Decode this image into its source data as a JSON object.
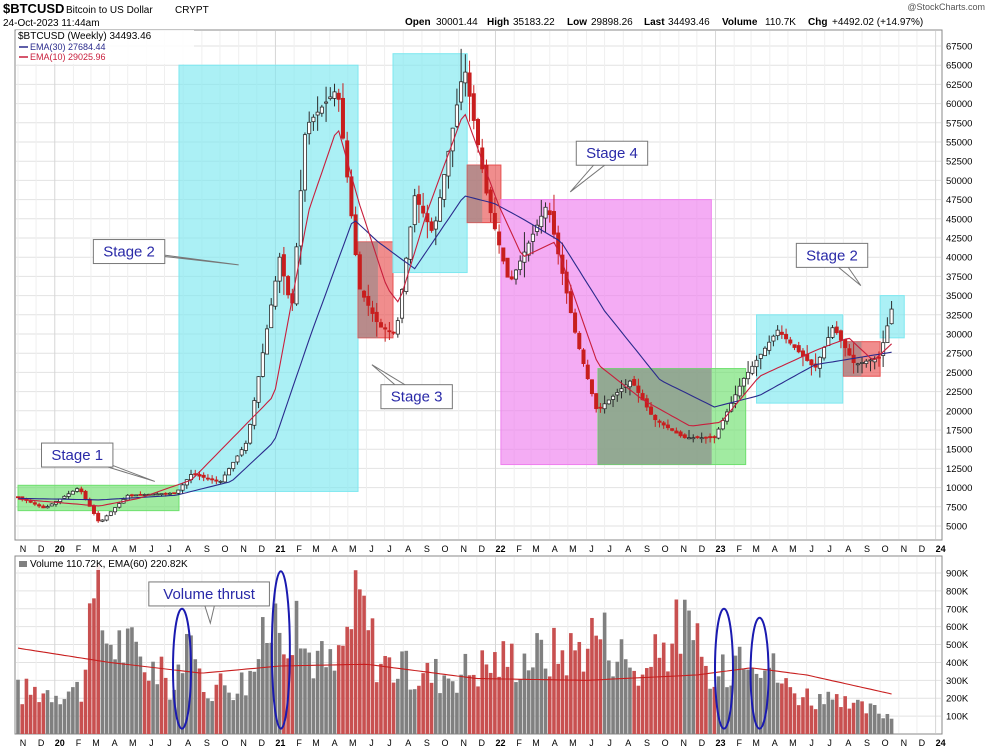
{
  "header": {
    "symbol": "$BTCUSD",
    "name": "Bitcoin to US Dollar",
    "exchange": "CRYPT",
    "date": "24-Oct-2023 11:44am",
    "watermark": "@StockCharts.com",
    "open_label": "Open",
    "open": "30001.44",
    "high_label": "High",
    "high": "35183.22",
    "low_label": "Low",
    "low": "29898.26",
    "last_label": "Last",
    "last": "34493.46",
    "volume_label": "Volume",
    "volume": "110.7K",
    "chg_label": "Chg",
    "chg": "+4492.02 (+14.97%)"
  },
  "legend": {
    "price": "$BTCUSD (Weekly) 34493.46",
    "ema30": "EMA(30) 27684.44",
    "ema10": "EMA(10) 29025.96",
    "volume": "Volume 110.72K, EMA(60) 220.82K"
  },
  "colors": {
    "up": "#2b2b2b",
    "down": "#c81e1e",
    "ema30": "#2a2a8c",
    "ema10": "#c81e3c",
    "ema_vol": "#c81e1e",
    "vol_up": "#808080",
    "vol_down": "#c85050",
    "stage1": "#6fe06f",
    "stage2": "#7ee8f0",
    "stage3": "#e85050",
    "stage4": "#ee80ee",
    "ellipse": "#1a1ab0"
  },
  "chart_data": {
    "type": "candlestick",
    "interval": "weekly",
    "ylim": [
      4500,
      69000
    ],
    "y_ticks": [
      5000,
      7500,
      10000,
      12500,
      15000,
      17500,
      20000,
      22500,
      25000,
      27500,
      30000,
      32500,
      35000,
      37500,
      40000,
      42500,
      45000,
      47500,
      50000,
      52500,
      55000,
      57500,
      60000,
      62500,
      65000,
      67500
    ],
    "x_axis_labels": [
      "N",
      "D",
      "20",
      "F",
      "M",
      "A",
      "M",
      "J",
      "J",
      "A",
      "S",
      "O",
      "N",
      "D",
      "21",
      "F",
      "M",
      "A",
      "M",
      "J",
      "J",
      "A",
      "S",
      "O",
      "N",
      "D",
      "22",
      "F",
      "M",
      "A",
      "M",
      "J",
      "J",
      "A",
      "S",
      "O",
      "N",
      "D",
      "23",
      "F",
      "M",
      "A",
      "M",
      "J",
      "J",
      "A",
      "S",
      "O",
      "N",
      "D",
      "24"
    ],
    "price_path": [
      [
        "2019-11-01",
        8800
      ],
      [
        "2019-12-15",
        7300
      ],
      [
        "2020-02-10",
        10000
      ],
      [
        "2020-03-15",
        5400
      ],
      [
        "2020-05-01",
        9000
      ],
      [
        "2020-07-20",
        9300
      ],
      [
        "2020-08-15",
        11800
      ],
      [
        "2020-10-01",
        10700
      ],
      [
        "2020-11-15",
        16000
      ],
      [
        "2021-01-08",
        40000
      ],
      [
        "2021-01-28",
        33000
      ],
      [
        "2021-02-20",
        57000
      ],
      [
        "2021-04-14",
        62000
      ],
      [
        "2021-05-20",
        36000
      ],
      [
        "2021-06-22",
        31000
      ],
      [
        "2021-07-20",
        30000
      ],
      [
        "2021-08-20",
        48000
      ],
      [
        "2021-09-20",
        43000
      ],
      [
        "2021-11-10",
        65000
      ],
      [
        "2021-12-20",
        47000
      ],
      [
        "2022-01-24",
        36500
      ],
      [
        "2022-03-28",
        47000
      ],
      [
        "2022-05-15",
        29500
      ],
      [
        "2022-06-18",
        20000
      ],
      [
        "2022-08-14",
        24000
      ],
      [
        "2022-09-20",
        19000
      ],
      [
        "2022-11-09",
        16500
      ],
      [
        "2022-12-30",
        16500
      ],
      [
        "2023-02-15",
        24000
      ],
      [
        "2023-04-14",
        30500
      ],
      [
        "2023-06-15",
        25500
      ],
      [
        "2023-07-15",
        31000
      ],
      [
        "2023-08-20",
        26000
      ],
      [
        "2023-09-30",
        27000
      ],
      [
        "2023-10-24",
        34493
      ]
    ],
    "ema30_path": [
      [
        "2019-11-01",
        8600
      ],
      [
        "2020-03-15",
        8400
      ],
      [
        "2020-07-20",
        9000
      ],
      [
        "2020-10-20",
        10800
      ],
      [
        "2020-12-30",
        16000
      ],
      [
        "2021-03-01",
        30000
      ],
      [
        "2021-05-10",
        45000
      ],
      [
        "2021-06-20",
        42000
      ],
      [
        "2021-08-20",
        38500
      ],
      [
        "2021-11-10",
        48000
      ],
      [
        "2021-12-30",
        47000
      ],
      [
        "2022-02-15",
        45000
      ],
      [
        "2022-04-20",
        42000
      ],
      [
        "2022-07-01",
        33000
      ],
      [
        "2022-10-01",
        24000
      ],
      [
        "2022-12-30",
        20500
      ],
      [
        "2023-03-15",
        22000
      ],
      [
        "2023-06-15",
        26000
      ],
      [
        "2023-10-24",
        27684
      ]
    ],
    "ema10_path": [
      [
        "2019-11-01",
        8500
      ],
      [
        "2020-03-15",
        7600
      ],
      [
        "2020-05-20",
        8600
      ],
      [
        "2020-08-15",
        11000
      ],
      [
        "2020-12-30",
        22000
      ],
      [
        "2021-02-25",
        46000
      ],
      [
        "2021-04-14",
        57000
      ],
      [
        "2021-05-20",
        47000
      ],
      [
        "2021-07-05",
        36000
      ],
      [
        "2021-07-25",
        34000
      ],
      [
        "2021-09-10",
        46000
      ],
      [
        "2021-11-10",
        59000
      ],
      [
        "2022-01-05",
        47000
      ],
      [
        "2022-02-15",
        40000
      ],
      [
        "2022-04-10",
        42000
      ],
      [
        "2022-06-20",
        26000
      ],
      [
        "2022-09-01",
        21500
      ],
      [
        "2022-11-20",
        18000
      ],
      [
        "2023-01-10",
        18500
      ],
      [
        "2023-03-15",
        24500
      ],
      [
        "2023-06-20",
        28000
      ],
      [
        "2023-08-10",
        29500
      ],
      [
        "2023-09-20",
        26500
      ],
      [
        "2023-10-24",
        29026
      ]
    ],
    "stage_boxes": [
      {
        "stage": 1,
        "from": "2019-11-01",
        "to": "2020-07-25",
        "low": 7000,
        "high": 10300
      },
      {
        "stage": 2,
        "from": "2020-07-25",
        "to": "2021-05-18",
        "low": 9500,
        "high": 65000
      },
      {
        "stage": 3,
        "from": "2021-05-18",
        "to": "2021-07-15",
        "low": 29500,
        "high": 42000
      },
      {
        "stage": 2,
        "from": "2021-07-15",
        "to": "2021-11-15",
        "low": 38000,
        "high": 66500
      },
      {
        "stage": 3,
        "from": "2021-11-15",
        "to": "2022-01-10",
        "low": 44500,
        "high": 52000
      },
      {
        "stage": 4,
        "from": "2022-01-10",
        "to": "2022-12-25",
        "low": 13000,
        "high": 47500
      },
      {
        "stage": 1,
        "from": "2022-06-20",
        "to": "2023-02-20",
        "low": 13000,
        "high": 25500
      },
      {
        "stage": 2,
        "from": "2023-03-10",
        "to": "2023-07-31",
        "low": 21000,
        "high": 32500
      },
      {
        "stage": 3,
        "from": "2023-08-01",
        "to": "2023-10-01",
        "low": 24500,
        "high": 29000
      },
      {
        "stage": 2,
        "from": "2023-10-01",
        "to": "2023-11-10",
        "low": 29500,
        "high": 35000
      }
    ],
    "overlap_boxes": [
      {
        "from": "2021-05-18",
        "to": "2021-06-20",
        "low": 29500,
        "high": 42000
      },
      {
        "from": "2021-11-15",
        "to": "2021-12-10",
        "low": 44500,
        "high": 52000
      },
      {
        "from": "2022-06-20",
        "to": "2022-12-25",
        "low": 13000,
        "high": 25500
      },
      {
        "from": "2023-08-01",
        "to": "2023-08-31",
        "low": 24500,
        "high": 29000
      }
    ],
    "annotations": [
      {
        "text": "Stage 1",
        "box_at": [
          "2019-12-10",
          15800
        ],
        "arrow_to": [
          "2020-06-15",
          10800
        ]
      },
      {
        "text": "Stage 2",
        "box_at": [
          "2020-03-05",
          42300
        ],
        "arrow_to": [
          "2020-11-01",
          39000
        ]
      },
      {
        "text": "Stage 3",
        "box_at": [
          "2021-06-25",
          23400
        ],
        "arrow_to": [
          "2021-06-10",
          26000
        ]
      },
      {
        "text": "Stage 4",
        "box_at": [
          "2022-05-15",
          55100
        ],
        "arrow_to": [
          "2022-05-05",
          48500
        ]
      },
      {
        "text": "Stage 2",
        "box_at": [
          "2023-05-15",
          41800
        ],
        "arrow_to": [
          "2023-08-30",
          36300
        ]
      },
      {
        "text": "Volume thrust",
        "box_at": [
          "2020-06-05",
          850000
        ],
        "arrow_to": [
          "2020-09-15",
          620000
        ]
      }
    ],
    "volume": {
      "ylim": [
        0,
        1000000
      ],
      "y_ticks": [
        100000,
        200000,
        300000,
        400000,
        500000,
        600000,
        700000,
        800000,
        900000
      ],
      "y_tick_labels": [
        "100K",
        "200K",
        "300K",
        "400K",
        "500K",
        "600K",
        "700K",
        "800K",
        "900K"
      ],
      "path": [
        [
          "2019-11-01",
          280000
        ],
        [
          "2020-02-15",
          300000
        ],
        [
          "2020-03-10",
          920000
        ],
        [
          "2020-03-25",
          650000
        ],
        [
          "2020-05-10",
          550000
        ],
        [
          "2020-07-20",
          300000
        ],
        [
          "2020-07-28",
          590000
        ],
        [
          "2020-09-10",
          320000
        ],
        [
          "2020-11-15",
          350000
        ],
        [
          "2021-01-08",
          830000
        ],
        [
          "2021-02-20",
          560000
        ],
        [
          "2021-04-10",
          430000
        ],
        [
          "2021-05-20",
          900000
        ],
        [
          "2021-06-20",
          500000
        ],
        [
          "2021-08-20",
          380000
        ],
        [
          "2021-11-10",
          420000
        ],
        [
          "2022-01-20",
          500000
        ],
        [
          "2022-05-15",
          560000
        ],
        [
          "2022-06-18",
          700000
        ],
        [
          "2022-09-01",
          380000
        ],
        [
          "2022-11-09",
          750000
        ],
        [
          "2022-12-30",
          300000
        ],
        [
          "2023-02-20",
          650000
        ],
        [
          "2023-03-15",
          550000
        ],
        [
          "2023-05-01",
          300000
        ],
        [
          "2023-07-15",
          200000
        ],
        [
          "2023-10-01",
          150000
        ],
        [
          "2023-10-24",
          110720
        ]
      ],
      "ema60_path": [
        [
          "2019-11-01",
          480000
        ],
        [
          "2020-04-01",
          400000
        ],
        [
          "2020-09-01",
          340000
        ],
        [
          "2021-01-08",
          380000
        ],
        [
          "2021-06-01",
          390000
        ],
        [
          "2021-12-01",
          310000
        ],
        [
          "2022-06-01",
          300000
        ],
        [
          "2022-12-01",
          330000
        ],
        [
          "2023-03-01",
          370000
        ],
        [
          "2023-06-01",
          330000
        ],
        [
          "2023-10-24",
          220820
        ]
      ],
      "thrust_ellipses": [
        {
          "center": "2020-07-30",
          "low": 30000,
          "high": 700000
        },
        {
          "center": "2021-01-10",
          "low": 30000,
          "high": 910000
        },
        {
          "center": "2023-01-15",
          "low": 30000,
          "high": 700000
        },
        {
          "center": "2023-03-15",
          "low": 30000,
          "high": 650000
        }
      ]
    }
  }
}
